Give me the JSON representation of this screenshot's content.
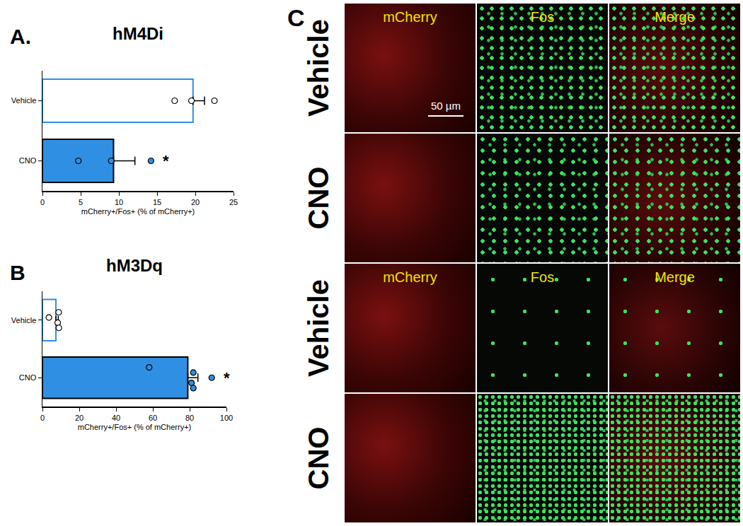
{
  "chart_data": [
    {
      "panel": "A.",
      "type": "bar",
      "orientation": "horizontal",
      "title": "hM4Di",
      "categories": [
        "Vehicle",
        "CNO"
      ],
      "values": [
        19.7,
        9.3
      ],
      "error": [
        1.5,
        2.8
      ],
      "points": [
        [
          17.3,
          19.5,
          22.5
        ],
        [
          4.7,
          9.0,
          14.2
        ]
      ],
      "colors": [
        "#ffffff",
        "#2f8fe3"
      ],
      "x_label": "mCherry+/Fos+ (% of mCherry+)",
      "xlim": [
        0,
        25
      ],
      "xticks": [
        0,
        5,
        10,
        15,
        20,
        25
      ],
      "annotations": [
        {
          "category": "CNO",
          "text": "*"
        }
      ]
    },
    {
      "panel": "B",
      "type": "bar",
      "orientation": "horizontal",
      "title": "hM3Dq",
      "categories": [
        "Vehicle",
        "CNO"
      ],
      "values": [
        7.3,
        79.0
      ],
      "error": [
        1.3,
        5.5
      ],
      "points": [
        [
          8.8,
          3.5,
          8.3,
          8.9
        ],
        [
          58.0,
          82.0,
          92.0,
          81.0,
          82.0
        ]
      ],
      "colors": [
        "#ffffff",
        "#2f8fe3"
      ],
      "x_label": "mCherry+/Fos+ (% of mCherry+)",
      "xlim": [
        0,
        100
      ],
      "xticks": [
        0,
        20,
        40,
        60,
        80,
        100
      ],
      "annotations": [
        {
          "category": "CNO",
          "text": "*"
        }
      ]
    }
  ],
  "panel_c": {
    "panel": "C",
    "row_labels": [
      "Vehicle",
      "CNO",
      "Vehicle",
      "CNO"
    ],
    "column_labels": [
      "mCherry",
      "Fos",
      "Merge"
    ],
    "scale_bar": "50 µm"
  }
}
